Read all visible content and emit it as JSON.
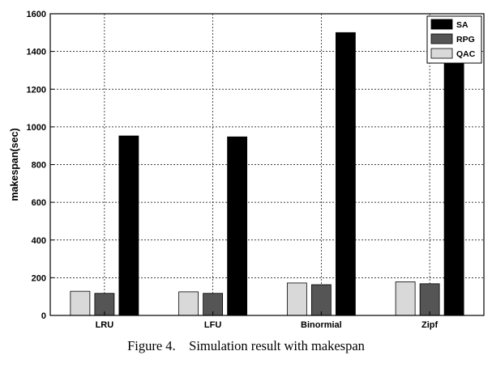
{
  "caption": "Figure 4.    Simulation result with makespan",
  "chart_data": {
    "type": "bar",
    "categories": [
      "LRU",
      "LFU",
      "Binormial",
      "Zipf"
    ],
    "series": [
      {
        "name": "QAC",
        "values": [
          128,
          125,
          172,
          178
        ],
        "color": "#d9d9d9"
      },
      {
        "name": "RPG",
        "values": [
          117,
          117,
          163,
          168
        ],
        "color": "#555555"
      },
      {
        "name": "SA",
        "values": [
          952,
          947,
          1500,
          1368
        ],
        "color": "#000000"
      }
    ],
    "legend_order": [
      "SA",
      "RPG",
      "QAC"
    ],
    "legend_position": "top-right",
    "title": "",
    "xlabel": "",
    "ylabel": "makespan(sec)",
    "ylim": [
      0,
      1600
    ],
    "yticks": [
      0,
      200,
      400,
      600,
      800,
      1000,
      1200,
      1400,
      1600
    ],
    "grid": true
  }
}
